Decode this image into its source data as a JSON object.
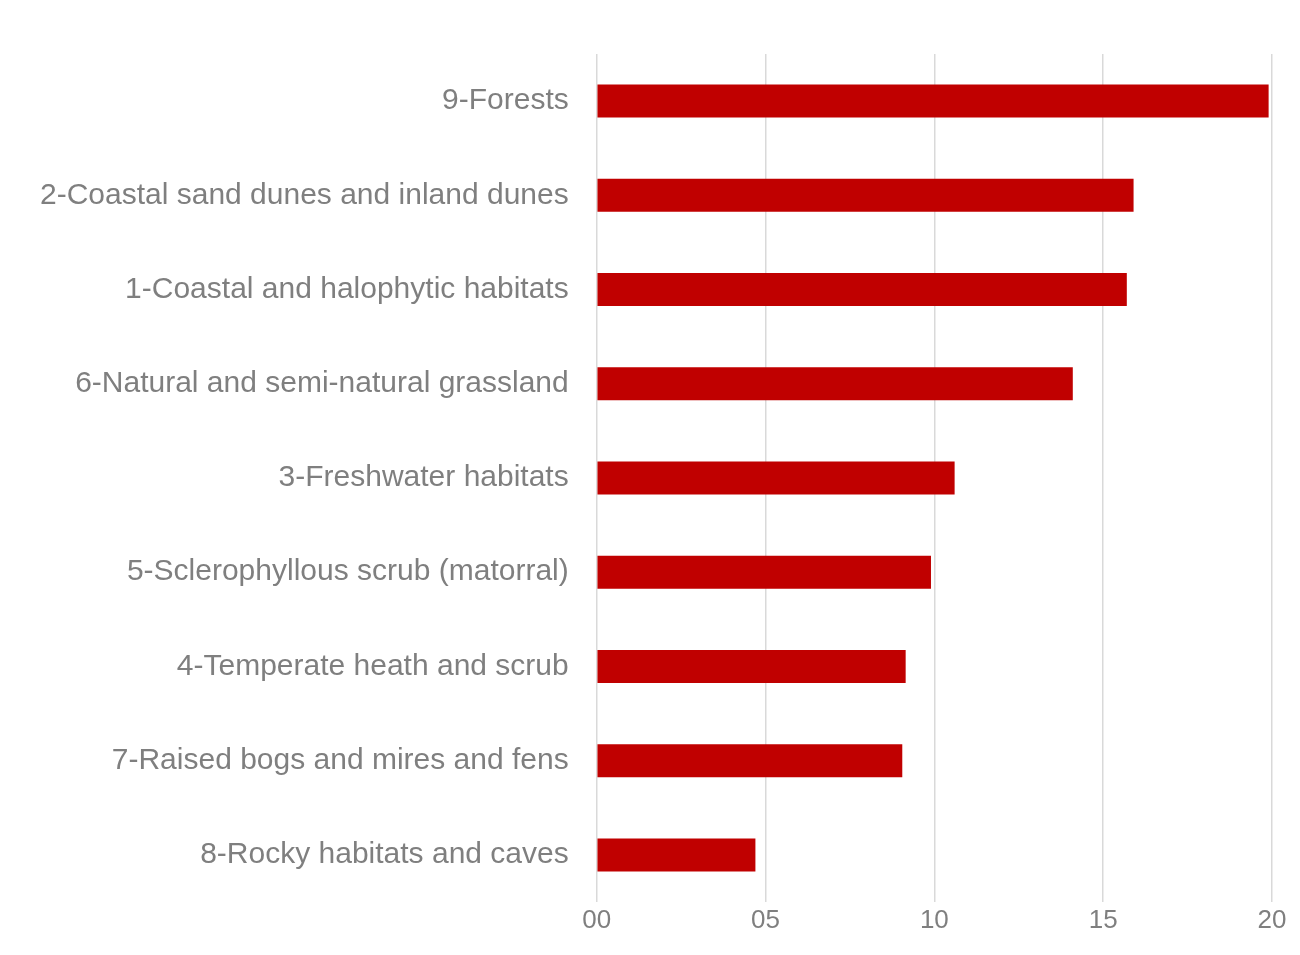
{
  "chart_data": {
    "type": "bar",
    "orientation": "horizontal",
    "categories": [
      "9-Forests",
      "2-Coastal sand dunes and inland dunes",
      "1-Coastal and halophytic habitats",
      "6-Natural and semi-natural grassland",
      "3-Freshwater habitats",
      "5-Sclerophyllous scrub (matorral)",
      "4-Temperate heath and scrub",
      "7-Raised bogs and mires and fens",
      "8-Rocky habitats and caves"
    ],
    "values": [
      19.9,
      15.9,
      15.7,
      14.1,
      10.6,
      9.9,
      9.15,
      9.05,
      4.7
    ],
    "color": "#c00000",
    "xlim": [
      0,
      20
    ],
    "xticks": [
      {
        "value": 0,
        "label": "00"
      },
      {
        "value": 5,
        "label": "05"
      },
      {
        "value": 10,
        "label": "10"
      },
      {
        "value": 15,
        "label": "15"
      },
      {
        "value": 20,
        "label": "20"
      }
    ],
    "grid": "x",
    "legend": false
  }
}
